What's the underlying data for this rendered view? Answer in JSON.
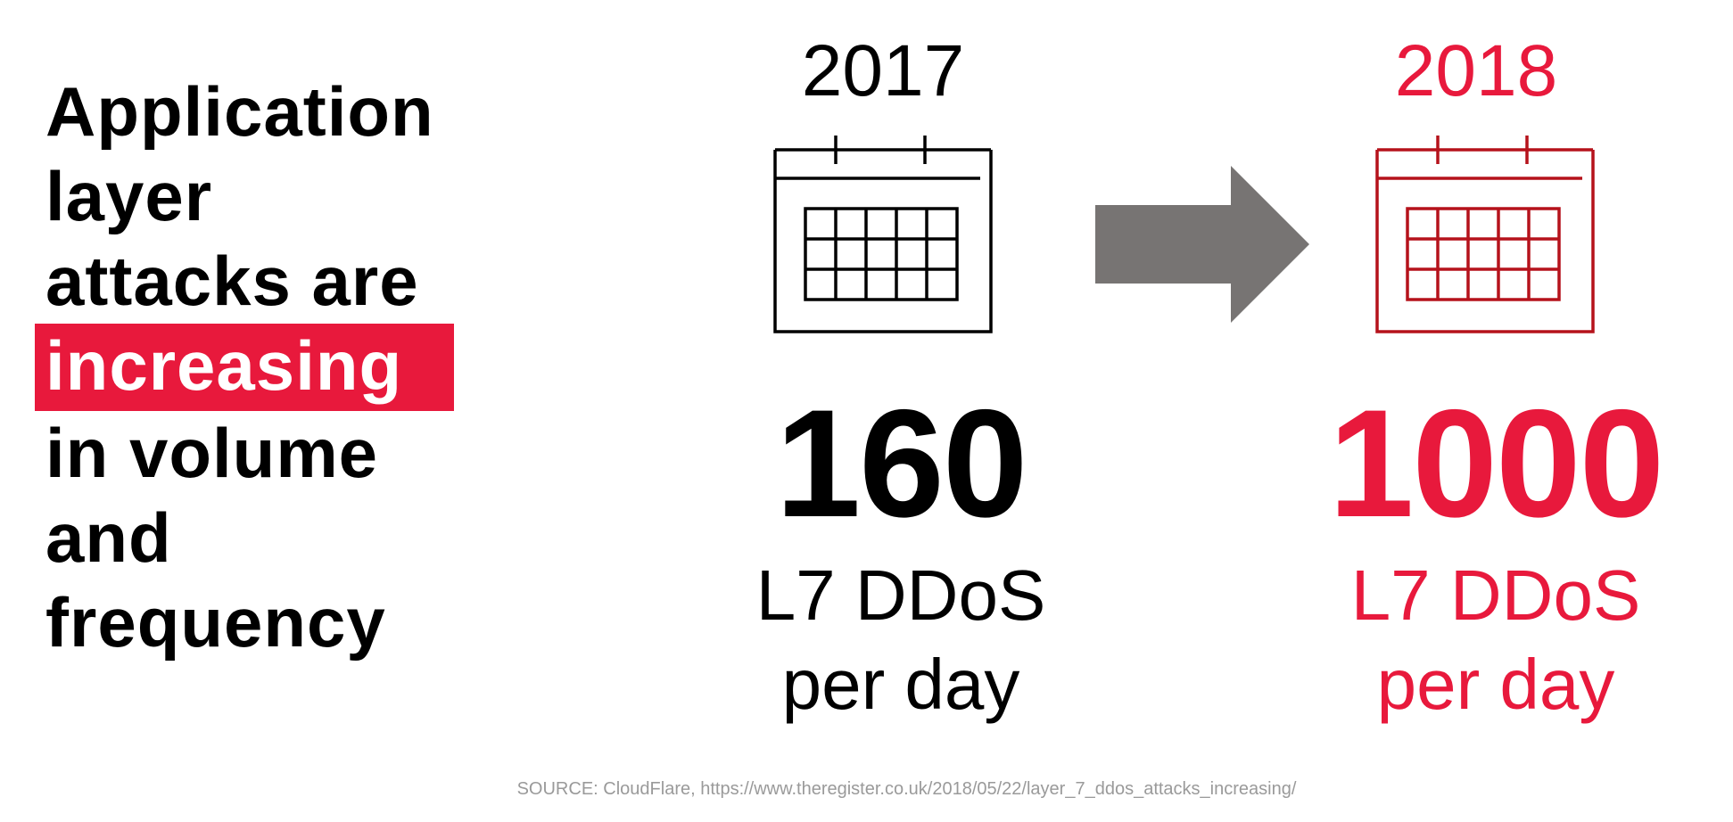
{
  "headline": {
    "line1": "Application",
    "line2": "layer",
    "line3": "attacks are",
    "highlight": "increasing",
    "line5": "in volume",
    "line6": "and",
    "line7": "frequency"
  },
  "left_stat": {
    "year": "2017",
    "value": "160",
    "unit_line1": "L7 DDoS",
    "unit_line2": "per day",
    "icon": "calendar-icon",
    "color": "#000000"
  },
  "right_stat": {
    "year": "2018",
    "value": "1000",
    "unit_line1": "L7 DDoS",
    "unit_line2": "per day",
    "icon": "calendar-icon",
    "color": "#e8193c"
  },
  "arrow": {
    "icon": "right-arrow-icon",
    "color": "#777473"
  },
  "colors": {
    "accent": "#e8193c",
    "text": "#000000",
    "source_text": "#9a9a9a"
  },
  "source": "SOURCE: CloudFlare, https://www.theregister.co.uk/2018/05/22/layer_7_ddos_attacks_increasing/"
}
